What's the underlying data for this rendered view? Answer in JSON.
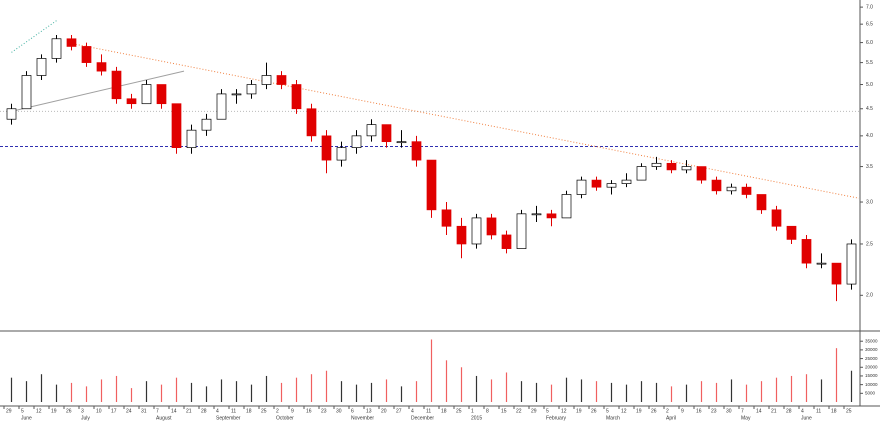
{
  "chart_data": {
    "type": "candlestick",
    "categories": [
      "29",
      "5",
      "12",
      "19",
      "26",
      "3",
      "10",
      "17",
      "24",
      "31",
      "7",
      "14",
      "21",
      "28",
      "4",
      "11",
      "18",
      "25",
      "2",
      "9",
      "16",
      "23",
      "30",
      "6",
      "13",
      "20",
      "27",
      "4",
      "11",
      "18",
      "25",
      "1",
      "8",
      "15",
      "22",
      "29",
      "5",
      "12",
      "19",
      "26",
      "5",
      "12",
      "19",
      "26",
      "2",
      "9",
      "16",
      "23",
      "30",
      "7",
      "14",
      "21",
      "28",
      "4",
      "11",
      "18",
      "25"
    ],
    "months": [
      null,
      "June",
      null,
      null,
      null,
      "July",
      null,
      null,
      null,
      null,
      "August",
      null,
      null,
      null,
      "September",
      null,
      null,
      null,
      "October",
      null,
      null,
      null,
      null,
      "November",
      null,
      null,
      null,
      "December",
      null,
      null,
      null,
      "2015",
      null,
      null,
      null,
      null,
      "February",
      null,
      null,
      null,
      "March",
      null,
      null,
      null,
      "April",
      null,
      null,
      null,
      null,
      "May",
      null,
      null,
      null,
      "June",
      null,
      null,
      null
    ],
    "ohlc": [
      [
        4.3,
        4.6,
        4.2,
        4.5
      ],
      [
        4.5,
        5.3,
        4.5,
        5.2
      ],
      [
        5.2,
        5.7,
        5.1,
        5.6
      ],
      [
        5.6,
        6.2,
        5.5,
        6.1
      ],
      [
        6.1,
        6.2,
        5.8,
        5.9
      ],
      [
        5.9,
        6.0,
        5.4,
        5.5
      ],
      [
        5.5,
        5.7,
        5.2,
        5.3
      ],
      [
        5.3,
        5.4,
        4.6,
        4.7
      ],
      [
        4.7,
        4.8,
        4.5,
        4.6
      ],
      [
        4.6,
        5.1,
        4.6,
        5.0
      ],
      [
        5.0,
        5.0,
        4.5,
        4.6
      ],
      [
        4.6,
        4.6,
        3.7,
        3.8
      ],
      [
        3.8,
        4.2,
        3.7,
        4.1
      ],
      [
        4.1,
        4.4,
        4.0,
        4.3
      ],
      [
        4.3,
        4.9,
        4.3,
        4.8
      ],
      [
        4.8,
        4.9,
        4.6,
        4.8
      ],
      [
        4.8,
        5.1,
        4.7,
        5.0
      ],
      [
        5.0,
        5.5,
        4.9,
        5.2
      ],
      [
        5.2,
        5.3,
        4.9,
        5.0
      ],
      [
        5.0,
        5.1,
        4.4,
        4.5
      ],
      [
        4.5,
        4.6,
        3.9,
        4.0
      ],
      [
        4.0,
        4.1,
        3.4,
        3.6
      ],
      [
        3.6,
        3.9,
        3.5,
        3.8
      ],
      [
        3.8,
        4.1,
        3.7,
        4.0
      ],
      [
        4.0,
        4.3,
        3.9,
        4.2
      ],
      [
        4.2,
        4.2,
        3.8,
        3.9
      ],
      [
        3.9,
        4.1,
        3.8,
        3.9
      ],
      [
        3.9,
        4.0,
        3.5,
        3.6
      ],
      [
        3.6,
        3.6,
        2.8,
        2.9
      ],
      [
        2.9,
        3.0,
        2.6,
        2.7
      ],
      [
        2.7,
        2.8,
        2.35,
        2.5
      ],
      [
        2.5,
        2.85,
        2.45,
        2.8
      ],
      [
        2.8,
        2.85,
        2.55,
        2.6
      ],
      [
        2.6,
        2.65,
        2.4,
        2.45
      ],
      [
        2.45,
        2.9,
        2.45,
        2.85
      ],
      [
        2.85,
        2.95,
        2.75,
        2.85
      ],
      [
        2.85,
        2.9,
        2.7,
        2.8
      ],
      [
        2.8,
        3.15,
        2.8,
        3.1
      ],
      [
        3.1,
        3.35,
        3.05,
        3.3
      ],
      [
        3.3,
        3.35,
        3.15,
        3.2
      ],
      [
        3.2,
        3.3,
        3.1,
        3.25
      ],
      [
        3.25,
        3.4,
        3.2,
        3.3
      ],
      [
        3.3,
        3.55,
        3.3,
        3.5
      ],
      [
        3.5,
        3.65,
        3.45,
        3.55
      ],
      [
        3.55,
        3.6,
        3.4,
        3.45
      ],
      [
        3.45,
        3.6,
        3.4,
        3.5
      ],
      [
        3.5,
        3.5,
        3.25,
        3.3
      ],
      [
        3.3,
        3.35,
        3.1,
        3.15
      ],
      [
        3.15,
        3.25,
        3.1,
        3.2
      ],
      [
        3.2,
        3.25,
        3.05,
        3.1
      ],
      [
        3.1,
        3.1,
        2.85,
        2.9
      ],
      [
        2.9,
        2.95,
        2.65,
        2.7
      ],
      [
        2.7,
        2.7,
        2.5,
        2.55
      ],
      [
        2.55,
        2.6,
        2.25,
        2.3
      ],
      [
        2.3,
        2.4,
        2.25,
        2.3
      ],
      [
        2.3,
        2.3,
        1.95,
        2.1
      ],
      [
        2.1,
        2.55,
        2.05,
        2.5
      ]
    ],
    "volume": [
      14000,
      12000,
      16000,
      10000,
      11000,
      9000,
      13000,
      15000,
      8000,
      12000,
      10000,
      14000,
      11000,
      9000,
      13000,
      12000,
      10000,
      15000,
      11000,
      14000,
      16000,
      18000,
      12000,
      10000,
      11000,
      13000,
      9000,
      12000,
      36000,
      24000,
      20000,
      15000,
      13000,
      17000,
      12000,
      11000,
      10000,
      14000,
      13000,
      12000,
      11000,
      10000,
      12000,
      11000,
      9000,
      10000,
      12000,
      11000,
      13000,
      10000,
      12000,
      14000,
      15000,
      16000,
      13000,
      31000,
      18000
    ],
    "up_color": "#ffffff",
    "down_color": "#e00000",
    "log_scale": true,
    "ylim": [
      1.72,
      7.22
    ],
    "yticks": [
      {
        "value": 7,
        "label": "7.0"
      },
      {
        "value": 6.5,
        "label": "6.5"
      },
      {
        "value": 6,
        "label": "6.0"
      },
      {
        "value": 5.5,
        "label": "5.5"
      },
      {
        "value": 5,
        "label": "5.0"
      },
      {
        "value": 4.5,
        "label": "4.5"
      },
      {
        "value": 4,
        "label": "4.0"
      },
      {
        "value": 3.5,
        "label": "3.5"
      },
      {
        "value": 3,
        "label": "3.0"
      },
      {
        "value": 2.5,
        "label": "2.5"
      },
      {
        "value": 2,
        "label": "2.0"
      }
    ],
    "volume_ylim": [
      0,
      38000
    ],
    "volume_yticks": [
      35000,
      30000,
      25000,
      20000,
      15000,
      10000,
      5000
    ],
    "hlines": [
      {
        "value": 4.45,
        "color": "#bbbbbb",
        "dash": "1,2"
      },
      {
        "value": 3.82,
        "color": "#3030b0",
        "dash": "3,2"
      }
    ],
    "trendlines": [
      {
        "x": [
          3.7,
          56.5
        ],
        "y": [
          6.0,
          3.05
        ],
        "color": "#f08040",
        "dash": "1,2"
      },
      {
        "x": [
          0,
          3
        ],
        "y": [
          5.75,
          6.6
        ],
        "color": "#40b0a0",
        "dash": "1,2"
      },
      {
        "x": [
          0,
          11.5
        ],
        "y": [
          4.45,
          5.3
        ],
        "color": "#a0a0a0",
        "dash": ""
      }
    ]
  }
}
